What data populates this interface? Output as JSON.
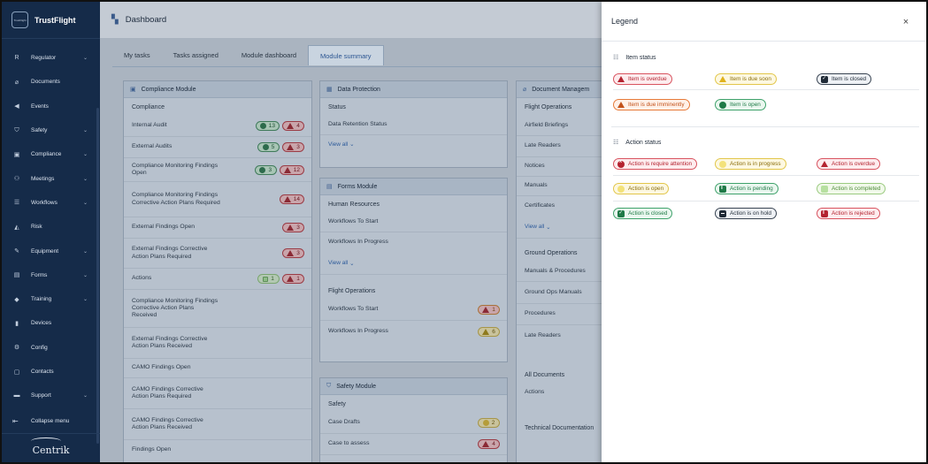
{
  "app": {
    "brand": "TrustFlight",
    "brand_logo": "TrustFlight",
    "footer_brand": "Centrik"
  },
  "sidebar": {
    "items": [
      {
        "label": "Regulator",
        "icon": "R",
        "has_chevron": true
      },
      {
        "label": "Documents",
        "icon": "paperclip-icon",
        "has_chevron": false
      },
      {
        "label": "Events",
        "icon": "megaphone-icon",
        "has_chevron": false
      },
      {
        "label": "Safety",
        "icon": "shield-icon",
        "has_chevron": true
      },
      {
        "label": "Compliance",
        "icon": "stamp-icon",
        "has_chevron": true
      },
      {
        "label": "Meetings",
        "icon": "people-icon",
        "has_chevron": true
      },
      {
        "label": "Workflows",
        "icon": "stack-icon",
        "has_chevron": true
      },
      {
        "label": "Risk",
        "icon": "risk-icon",
        "has_chevron": false
      },
      {
        "label": "Equipment",
        "icon": "wrench-icon",
        "has_chevron": true
      },
      {
        "label": "Forms",
        "icon": "form-icon",
        "has_chevron": true
      },
      {
        "label": "Training",
        "icon": "graduation-cap-icon",
        "has_chevron": true
      },
      {
        "label": "Devices",
        "icon": "device-icon",
        "has_chevron": false
      },
      {
        "label": "Config",
        "icon": "gear-icon",
        "has_chevron": false
      },
      {
        "label": "Contacts",
        "icon": "contacts-icon",
        "has_chevron": false
      },
      {
        "label": "Support",
        "icon": "support-icon",
        "has_chevron": true
      }
    ],
    "collapse_label": "Collapse menu"
  },
  "header": {
    "title": "Dashboard"
  },
  "tabs": [
    {
      "label": "My tasks"
    },
    {
      "label": "Tasks assigned"
    },
    {
      "label": "Module dashboard"
    },
    {
      "label": "Module summary",
      "active": true
    }
  ],
  "compliance": {
    "title": "Compliance Module",
    "section": "Compliance",
    "rows": [
      {
        "label": "Internal Audit",
        "green": "13",
        "red": "4"
      },
      {
        "label": "External Audits",
        "green": "5",
        "red": "3"
      },
      {
        "label": "Compliance Monitoring Findings Open",
        "green": "3",
        "red": "12"
      },
      {
        "label": "Compliance Monitoring Findings Corrective Action Plans Required",
        "red": "14"
      },
      {
        "label": "External Findings Open",
        "red": "3"
      },
      {
        "label": "External Findings Corrective Action Plans Required",
        "red": "3"
      },
      {
        "label": "Actions",
        "lightgreen": "1",
        "red": "1"
      },
      {
        "label": "Compliance Monitoring Findings Corrective Action Plans Received"
      },
      {
        "label": "External Findings Corrective Action Plans Received"
      },
      {
        "label": "CAMO Findings Open"
      },
      {
        "label": "CAMO Findings Corrective Action Plans Required"
      },
      {
        "label": "CAMO Findings Corrective Action Plans Received"
      },
      {
        "label": "Findings Open"
      }
    ]
  },
  "data_protection": {
    "title": "Data Protection",
    "section": "Status",
    "rows": [
      {
        "label": "Data Retention Status"
      }
    ],
    "view_all": "View all"
  },
  "forms": {
    "title": "Forms Module",
    "section1": "Human Resources",
    "rows1": [
      {
        "label": "Workflows To Start"
      },
      {
        "label": "Workflows In Progress"
      }
    ],
    "view_all": "View all",
    "section2": "Flight Operations",
    "rows2": [
      {
        "label": "Workflows To Start",
        "red": "1"
      },
      {
        "label": "Workflows In Progress",
        "yellow": "6"
      }
    ]
  },
  "safety": {
    "title": "Safety Module",
    "section": "Safety",
    "rows": [
      {
        "label": "Case Drafts",
        "ycircle": "2"
      },
      {
        "label": "Case to assess",
        "red": "4"
      }
    ]
  },
  "document": {
    "title": "Document Managem",
    "section1": "Flight Operations",
    "rows1": [
      {
        "label": "Airfield Briefings"
      },
      {
        "label": "Late Readers"
      },
      {
        "label": "Notices"
      },
      {
        "label": "Manuals"
      },
      {
        "label": "Certificates"
      }
    ],
    "view_all": "View all",
    "section2": "Ground Operations",
    "rows2": [
      {
        "label": "Manuals & Procedures"
      },
      {
        "label": "Ground Ops Manuals"
      },
      {
        "label": "Procedures"
      },
      {
        "label": "Late Readers"
      }
    ],
    "section3": "All Documents",
    "rows3": [
      {
        "label": "Actions"
      }
    ],
    "section4": "Technical Documentation"
  },
  "legend": {
    "title": "Legend",
    "item_status_title": "Item status",
    "item_status": [
      {
        "label": "Item is overdue"
      },
      {
        "label": "Item is due soon"
      },
      {
        "label": "Item is closed"
      },
      {
        "label": "Item is due imminently"
      },
      {
        "label": "Item is open"
      }
    ],
    "action_status_title": "Action status",
    "action_status": [
      {
        "label": "Action is require attention"
      },
      {
        "label": "Action is in progress"
      },
      {
        "label": "Action is overdue"
      },
      {
        "label": "Action is open"
      },
      {
        "label": "Action is pending"
      },
      {
        "label": "Action is completed"
      },
      {
        "label": "Action is closed"
      },
      {
        "label": "Action is on hold"
      },
      {
        "label": "Action is rejected"
      }
    ]
  },
  "colors": {
    "sidebar": "#152b49",
    "accent": "#2b5592",
    "overdue": "#b42330",
    "open": "#1f7a47",
    "due_soon": "#e0b21d",
    "imminent": "#c2521a"
  }
}
